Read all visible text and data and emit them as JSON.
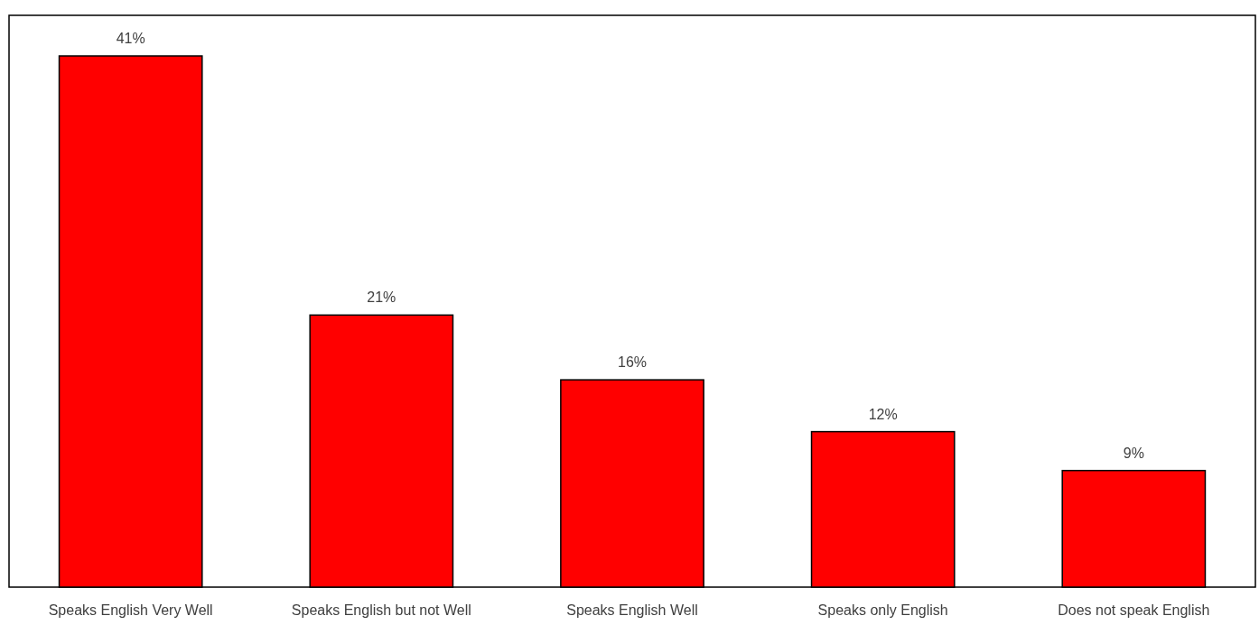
{
  "chart_data": {
    "type": "bar",
    "categories": [
      "Speaks English Very Well",
      "Speaks English but not Well",
      "Speaks English Well",
      "Speaks only English",
      "Does not speak English"
    ],
    "values": [
      41,
      21,
      16,
      12,
      9
    ],
    "color": "#ff0000",
    "value_labels": [
      "41%",
      "21%",
      "16%",
      "12%",
      "9%"
    ]
  }
}
